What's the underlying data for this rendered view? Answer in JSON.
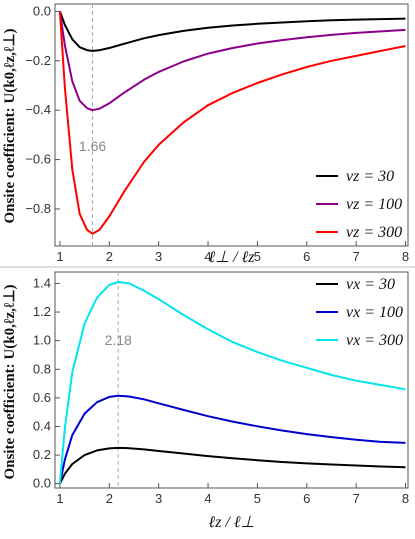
{
  "chart_data": [
    {
      "type": "line",
      "title": "",
      "xlabel": "ℓ⊥ / ℓz",
      "ylabel": "Onsite coefficient: U(k0,ℓz,ℓ⊥)",
      "xlim": [
        0.9,
        8.05
      ],
      "ylim": [
        -0.95,
        0.03
      ],
      "xticks": [
        1,
        2,
        3,
        4,
        5,
        6,
        7,
        8
      ],
      "xtick_labels": [
        "1",
        "2",
        "3",
        "4",
        "5",
        "6",
        "7",
        "8"
      ],
      "yticks": [
        0.0,
        -0.2,
        -0.4,
        -0.6,
        -0.8
      ],
      "ytick_labels": [
        "0.0",
        "−0.2",
        "−0.4",
        "−0.6",
        "−0.8"
      ],
      "legend_position": "right",
      "annotation": {
        "text": "1.66",
        "x": 1.66
      },
      "series": [
        {
          "name": "νz = 30",
          "color": "#000000",
          "x": [
            1.0,
            1.1,
            1.25,
            1.4,
            1.55,
            1.66,
            1.8,
            2.0,
            2.3,
            2.7,
            3.0,
            3.5,
            4.0,
            4.5,
            5.0,
            5.5,
            6.0,
            6.5,
            7.0,
            7.5,
            8.0
          ],
          "values": [
            0.0,
            -0.055,
            -0.113,
            -0.145,
            -0.157,
            -0.16,
            -0.157,
            -0.148,
            -0.131,
            -0.109,
            -0.096,
            -0.079,
            -0.066,
            -0.057,
            -0.05,
            -0.045,
            -0.04,
            -0.036,
            -0.033,
            -0.031,
            -0.029
          ]
        },
        {
          "name": "νz = 100",
          "color": "#8b008b",
          "x": [
            1.0,
            1.1,
            1.25,
            1.4,
            1.55,
            1.66,
            1.8,
            2.0,
            2.3,
            2.7,
            3.0,
            3.5,
            4.0,
            4.5,
            5.0,
            5.5,
            6.0,
            6.5,
            7.0,
            7.5,
            8.0
          ],
          "values": [
            0.0,
            -0.138,
            -0.283,
            -0.362,
            -0.392,
            -0.4,
            -0.394,
            -0.372,
            -0.329,
            -0.277,
            -0.245,
            -0.203,
            -0.171,
            -0.148,
            -0.13,
            -0.116,
            -0.105,
            -0.095,
            -0.087,
            -0.081,
            -0.075
          ]
        },
        {
          "name": "νz = 300",
          "color": "#ff0000",
          "x": [
            1.0,
            1.1,
            1.25,
            1.4,
            1.55,
            1.66,
            1.8,
            2.0,
            2.3,
            2.7,
            3.0,
            3.5,
            4.0,
            4.5,
            5.0,
            5.5,
            6.0,
            6.5,
            7.0,
            7.5,
            8.0
          ],
          "values": [
            0.0,
            -0.31,
            -0.64,
            -0.82,
            -0.885,
            -0.9,
            -0.885,
            -0.83,
            -0.73,
            -0.61,
            -0.54,
            -0.45,
            -0.38,
            -0.33,
            -0.29,
            -0.255,
            -0.225,
            -0.2,
            -0.18,
            -0.16,
            -0.14
          ]
        }
      ]
    },
    {
      "type": "line",
      "title": "",
      "xlabel": "ℓz / ℓ⊥",
      "ylabel": "Onsite coefficient: U(k0,ℓz,ℓ⊥)",
      "xlim": [
        0.9,
        8.05
      ],
      "ylim": [
        -0.03,
        1.48
      ],
      "xticks": [
        1,
        2,
        3,
        4,
        5,
        6,
        7,
        8
      ],
      "xtick_labels": [
        "1",
        "2",
        "3",
        "4",
        "5",
        "6",
        "7",
        "8"
      ],
      "yticks": [
        0.0,
        0.2,
        0.4,
        0.6,
        0.8,
        1.0,
        1.2,
        1.4
      ],
      "ytick_labels": [
        "0.0",
        "0.2",
        "0.4",
        "0.6",
        "0.8",
        "1.0",
        "1.2",
        "1.4"
      ],
      "legend_position": "top-right",
      "annotation": {
        "text": "2.18",
        "x": 2.18
      },
      "series": [
        {
          "name": "νx = 30",
          "color": "#000000",
          "x": [
            1.0,
            1.1,
            1.25,
            1.5,
            1.75,
            2.0,
            2.18,
            2.4,
            2.7,
            3.0,
            3.5,
            4.0,
            4.5,
            5.0,
            5.5,
            6.0,
            6.5,
            7.0,
            7.5,
            8.0
          ],
          "values": [
            0.0,
            0.07,
            0.138,
            0.2,
            0.233,
            0.247,
            0.25,
            0.248,
            0.24,
            0.229,
            0.211,
            0.193,
            0.178,
            0.164,
            0.152,
            0.142,
            0.134,
            0.127,
            0.12,
            0.115
          ]
        },
        {
          "name": "νx = 100",
          "color": "#0000cd",
          "x": [
            1.0,
            1.1,
            1.25,
            1.5,
            1.75,
            2.0,
            2.18,
            2.4,
            2.7,
            3.0,
            3.5,
            4.0,
            4.5,
            5.0,
            5.5,
            6.0,
            6.5,
            7.0,
            7.5,
            8.0
          ],
          "values": [
            0.0,
            0.17,
            0.34,
            0.49,
            0.57,
            0.607,
            0.615,
            0.61,
            0.59,
            0.562,
            0.516,
            0.472,
            0.434,
            0.401,
            0.372,
            0.347,
            0.326,
            0.308,
            0.292,
            0.285
          ]
        },
        {
          "name": "νx = 300",
          "color": "#00e5ee",
          "x": [
            1.0,
            1.1,
            1.25,
            1.5,
            1.75,
            2.0,
            2.18,
            2.4,
            2.7,
            3.0,
            3.5,
            4.0,
            4.5,
            5.0,
            5.5,
            6.0,
            6.5,
            7.0,
            7.5,
            8.0
          ],
          "values": [
            0.0,
            0.39,
            0.78,
            1.12,
            1.3,
            1.39,
            1.41,
            1.4,
            1.35,
            1.29,
            1.18,
            1.08,
            0.99,
            0.92,
            0.86,
            0.81,
            0.76,
            0.72,
            0.69,
            0.66
          ]
        }
      ]
    }
  ]
}
